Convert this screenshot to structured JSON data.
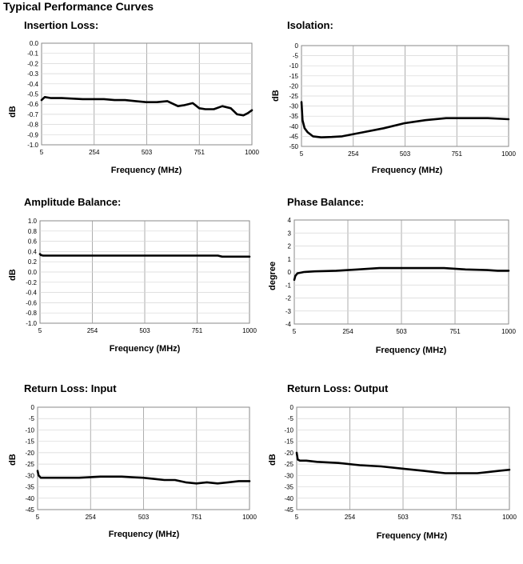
{
  "page_title": "Typical Performance Curves",
  "chart_data": [
    {
      "type": "line",
      "title": "Insertion Loss:",
      "xlabel": "Frequency (MHz)",
      "ylabel": "dB",
      "x_ticks": [
        "5",
        "254",
        "503",
        "751",
        "1000"
      ],
      "y_ticks": [
        "0.0",
        "-0.1",
        "-0.2",
        "-0.3",
        "-0.4",
        "-0.5",
        "-0.6",
        "-0.7",
        "-0.8",
        "-0.9",
        "-1.0"
      ],
      "xlim": [
        5,
        1000
      ],
      "ylim": [
        -1.0,
        0.0
      ],
      "grid": true,
      "series": [
        {
          "x": [
            5,
            20,
            50,
            100,
            200,
            300,
            350,
            400,
            450,
            500,
            550,
            600,
            650,
            680,
            720,
            751,
            780,
            820,
            860,
            900,
            930,
            960,
            980,
            1000
          ],
          "y": [
            -0.56,
            -0.53,
            -0.54,
            -0.54,
            -0.55,
            -0.55,
            -0.56,
            -0.56,
            -0.57,
            -0.58,
            -0.58,
            -0.57,
            -0.62,
            -0.61,
            -0.59,
            -0.64,
            -0.65,
            -0.65,
            -0.62,
            -0.64,
            -0.7,
            -0.71,
            -0.69,
            -0.66
          ]
        }
      ]
    },
    {
      "type": "line",
      "title": "Isolation:",
      "xlabel": "Frequency (MHz)",
      "ylabel": "dB",
      "x_ticks": [
        "5",
        "254",
        "503",
        "751",
        "1000"
      ],
      "y_ticks": [
        "0",
        "-5",
        "-10",
        "-15",
        "-20",
        "-25",
        "-30",
        "-35",
        "-40",
        "-45",
        "-50"
      ],
      "xlim": [
        5,
        1000
      ],
      "ylim": [
        -50,
        0
      ],
      "grid": true,
      "series": [
        {
          "x": [
            5,
            10,
            20,
            35,
            60,
            100,
            150,
            200,
            250,
            300,
            400,
            500,
            600,
            700,
            800,
            900,
            1000
          ],
          "y": [
            -28,
            -37,
            -41,
            -43,
            -45,
            -45.5,
            -45.3,
            -45,
            -44,
            -43,
            -41,
            -38.5,
            -37,
            -36,
            -36,
            -36,
            -36.5
          ]
        }
      ]
    },
    {
      "type": "line",
      "title": "Amplitude Balance:",
      "xlabel": "Frequency (MHz)",
      "ylabel": "dB",
      "x_ticks": [
        "5",
        "254",
        "503",
        "751",
        "1000"
      ],
      "y_ticks": [
        "1.0",
        "0.8",
        "0.6",
        "0.4",
        "0.2",
        "0.0",
        "-0.2",
        "-0.4",
        "-0.6",
        "-0.8",
        "-1.0"
      ],
      "xlim": [
        5,
        1000
      ],
      "ylim": [
        -1.0,
        1.0
      ],
      "grid": true,
      "series": [
        {
          "x": [
            5,
            10,
            20,
            100,
            300,
            500,
            700,
            850,
            870,
            900,
            1000
          ],
          "y": [
            0.35,
            0.33,
            0.32,
            0.32,
            0.32,
            0.32,
            0.32,
            0.32,
            0.3,
            0.3,
            0.3
          ]
        }
      ]
    },
    {
      "type": "line",
      "title": "Phase Balance:",
      "xlabel": "Frequency (MHz)",
      "ylabel": "degree",
      "x_ticks": [
        "5",
        "254",
        "503",
        "751",
        "1000"
      ],
      "y_ticks": [
        "4",
        "3",
        "2",
        "1",
        "0",
        "-1",
        "-2",
        "-3",
        "-4"
      ],
      "xlim": [
        5,
        1000
      ],
      "ylim": [
        -4,
        4
      ],
      "grid": true,
      "series": [
        {
          "x": [
            5,
            10,
            20,
            50,
            100,
            200,
            300,
            400,
            500,
            600,
            700,
            800,
            900,
            950,
            1000
          ],
          "y": [
            -0.6,
            -0.3,
            -0.1,
            0.0,
            0.05,
            0.1,
            0.2,
            0.3,
            0.3,
            0.3,
            0.3,
            0.2,
            0.15,
            0.1,
            0.1
          ]
        }
      ]
    },
    {
      "type": "line",
      "title": "Return Loss: Input",
      "xlabel": "Frequency (MHz)",
      "ylabel": "dB",
      "x_ticks": [
        "5",
        "254",
        "503",
        "751",
        "1000"
      ],
      "y_ticks": [
        "0",
        "-5",
        "-10",
        "-15",
        "-20",
        "-25",
        "-30",
        "-35",
        "-40",
        "-45"
      ],
      "xlim": [
        5,
        1000
      ],
      "ylim": [
        -45,
        0
      ],
      "grid": true,
      "series": [
        {
          "x": [
            5,
            10,
            20,
            50,
            100,
            200,
            300,
            350,
            400,
            450,
            500,
            550,
            600,
            650,
            700,
            751,
            800,
            850,
            900,
            950,
            1000
          ],
          "y": [
            -28,
            -30,
            -31,
            -31,
            -31,
            -31,
            -30.5,
            -30.5,
            -30.5,
            -30.8,
            -31,
            -31.5,
            -32,
            -32,
            -33,
            -33.5,
            -33,
            -33.5,
            -33,
            -32.5,
            -32.5
          ]
        }
      ]
    },
    {
      "type": "line",
      "title": "Return Loss: Output",
      "xlabel": "Frequency (MHz)",
      "ylabel": "dB",
      "x_ticks": [
        "5",
        "254",
        "503",
        "751",
        "1000"
      ],
      "y_ticks": [
        "0",
        "-5",
        "-10",
        "-15",
        "-20",
        "-25",
        "-30",
        "-35",
        "-40",
        "-45"
      ],
      "xlim": [
        5,
        1000
      ],
      "ylim": [
        -45,
        0
      ],
      "grid": true,
      "series": [
        {
          "x": [
            5,
            10,
            20,
            50,
            100,
            200,
            300,
            400,
            500,
            600,
            650,
            700,
            751,
            800,
            850,
            900,
            950,
            1000
          ],
          "y": [
            -20,
            -23,
            -23.5,
            -23.5,
            -24,
            -24.5,
            -25.5,
            -26,
            -27,
            -28,
            -28.5,
            -29,
            -29,
            -29,
            -29,
            -28.5,
            -28,
            -27.5
          ]
        }
      ]
    }
  ]
}
